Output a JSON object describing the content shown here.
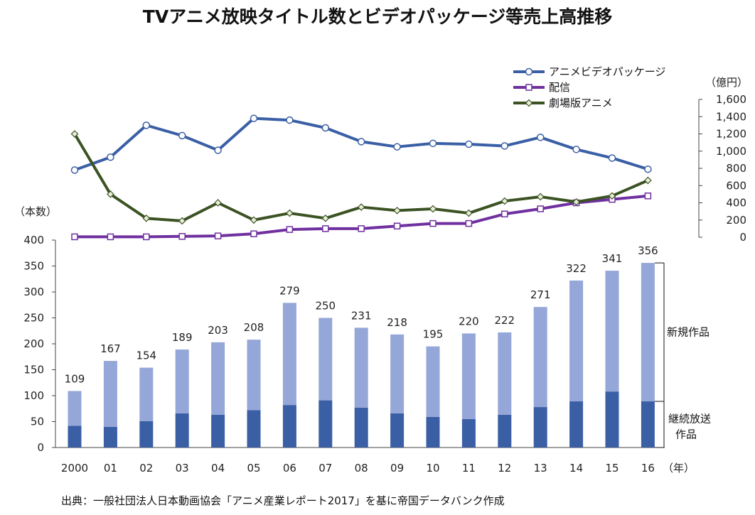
{
  "chart_data": [
    {
      "type": "bar",
      "stacked": true,
      "title": "TVアニメ放映タイトル数とビデオパッケージ等売上高推移",
      "categories": [
        "2000",
        "01",
        "02",
        "03",
        "04",
        "05",
        "06",
        "07",
        "08",
        "09",
        "10",
        "11",
        "12",
        "13",
        "14",
        "15",
        "16"
      ],
      "xlabel_unit": "（年）",
      "ylabel_unit": "（本数）",
      "ylim": [
        0,
        400
      ],
      "yticks": [
        0,
        50,
        100,
        150,
        200,
        250,
        300,
        350,
        400
      ],
      "totals": [
        109,
        167,
        154,
        189,
        203,
        208,
        279,
        250,
        231,
        218,
        195,
        220,
        222,
        271,
        322,
        341,
        356
      ],
      "series": [
        {
          "name": "継続放送作品",
          "label_lines": [
            "継続放送",
            "作品"
          ],
          "color": "#3a5fa5",
          "values": [
            42,
            40,
            51,
            66,
            63,
            72,
            82,
            91,
            77,
            66,
            59,
            55,
            63,
            78,
            89,
            108,
            89
          ]
        },
        {
          "name": "新規作品",
          "label_lines": [
            "新規作品"
          ],
          "color": "#95a7d8",
          "values": [
            67,
            127,
            103,
            123,
            140,
            136,
            197,
            159,
            154,
            152,
            136,
            165,
            159,
            193,
            233,
            233,
            267
          ]
        }
      ]
    },
    {
      "type": "line",
      "ylabel_unit": "（億円）",
      "ylim": [
        0,
        1600
      ],
      "ytick_labels": [
        "0",
        "200",
        "400",
        "600",
        "800",
        "1,000",
        "1,200",
        "1,400",
        "1,600"
      ],
      "yticks": [
        0,
        200,
        400,
        600,
        800,
        1000,
        1200,
        1400,
        1600
      ],
      "series": [
        {
          "name": "アニメビデオパッケージ",
          "color": "#3a5fa5",
          "marker": "circle",
          "values": [
            780,
            930,
            1300,
            1180,
            1010,
            1380,
            1360,
            1270,
            1110,
            1050,
            1090,
            1080,
            1060,
            1160,
            1020,
            920,
            790
          ]
        },
        {
          "name": "配信",
          "color": "#7030a0",
          "marker": "square",
          "values": [
            5,
            5,
            5,
            10,
            15,
            40,
            90,
            100,
            100,
            130,
            160,
            160,
            270,
            330,
            400,
            440,
            480
          ]
        },
        {
          "name": "劇場版アニメ",
          "color": "#3b5323",
          "marker": "diamond",
          "values": [
            1200,
            500,
            220,
            190,
            400,
            200,
            280,
            220,
            350,
            310,
            330,
            280,
            420,
            470,
            410,
            480,
            660
          ]
        }
      ]
    }
  ],
  "source_note": "出典：一般社団法人日本動画協会「アニメ産業レポート2017」を基に帝国データバンク作成"
}
